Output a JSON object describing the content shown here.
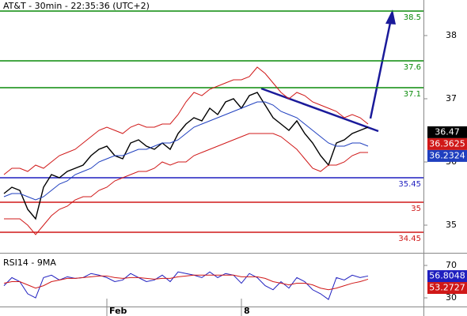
{
  "chart_data": [
    {
      "type": "line",
      "title": "AT&T - 30min - 22:35:36 (UTC+2)",
      "xticks": [
        {
          "value": 13,
          "label": "Feb"
        },
        {
          "value": 30,
          "label": "8"
        }
      ],
      "ylim": [
        34.5625,
        38.5625
      ],
      "yticks": [
        35,
        36,
        37,
        38
      ],
      "series": [
        {
          "name": "Close",
          "color": "#000000",
          "values": [
            35.5,
            35.6,
            35.55,
            35.25,
            35.1,
            35.6,
            35.8,
            35.75,
            35.85,
            35.9,
            35.95,
            36.1,
            36.2,
            36.25,
            36.1,
            36.05,
            36.3,
            36.35,
            36.25,
            36.2,
            36.3,
            36.2,
            36.45,
            36.6,
            36.7,
            36.65,
            36.85,
            36.75,
            36.95,
            37.0,
            36.85,
            37.05,
            37.1,
            36.9,
            36.7,
            36.6,
            36.5,
            36.65,
            36.45,
            36.3,
            36.1,
            35.95,
            36.3,
            36.35,
            36.45,
            36.5,
            36.55
          ]
        },
        {
          "name": "MA",
          "color": "#1f3fbf",
          "values": [
            35.45,
            35.5,
            35.5,
            35.45,
            35.4,
            35.45,
            35.55,
            35.65,
            35.7,
            35.8,
            35.85,
            35.9,
            36.0,
            36.05,
            36.1,
            36.1,
            36.15,
            36.2,
            36.2,
            36.25,
            36.3,
            36.3,
            36.35,
            36.45,
            36.55,
            36.6,
            36.65,
            36.7,
            36.75,
            36.8,
            36.85,
            36.9,
            36.95,
            36.95,
            36.9,
            36.8,
            36.75,
            36.7,
            36.6,
            36.5,
            36.4,
            36.3,
            36.25,
            36.25,
            36.3,
            36.3,
            36.25
          ]
        },
        {
          "name": "Upper",
          "color": "#d01818",
          "values": [
            35.8,
            35.9,
            35.9,
            35.85,
            35.95,
            35.9,
            36.0,
            36.1,
            36.15,
            36.2,
            36.3,
            36.4,
            36.5,
            36.55,
            36.5,
            36.45,
            36.55,
            36.6,
            36.55,
            36.55,
            36.6,
            36.6,
            36.75,
            36.95,
            37.1,
            37.05,
            37.15,
            37.2,
            37.25,
            37.3,
            37.3,
            37.35,
            37.5,
            37.4,
            37.25,
            37.1,
            37.0,
            37.1,
            37.05,
            36.95,
            36.9,
            36.85,
            36.8,
            36.7,
            36.75,
            36.7,
            36.6
          ]
        },
        {
          "name": "Lower",
          "color": "#d01818",
          "values": [
            35.1,
            35.1,
            35.1,
            35.0,
            34.85,
            35.0,
            35.15,
            35.25,
            35.3,
            35.4,
            35.45,
            35.45,
            35.55,
            35.6,
            35.7,
            35.75,
            35.8,
            35.85,
            35.85,
            35.9,
            36.0,
            35.95,
            36.0,
            36.0,
            36.1,
            36.15,
            36.2,
            36.25,
            36.3,
            36.35,
            36.4,
            36.45,
            36.45,
            36.45,
            36.45,
            36.4,
            36.3,
            36.2,
            36.05,
            35.9,
            35.85,
            35.95,
            35.95,
            36.0,
            36.1,
            36.15,
            36.15
          ]
        }
      ],
      "last_values": [
        {
          "value": 36.47,
          "color": "#000000"
        },
        {
          "value": 36.3625,
          "color": "#d01818"
        },
        {
          "value": 36.2324,
          "color": "#1f3fbf"
        }
      ],
      "levels": [
        {
          "label": "38.5",
          "color": "#0a8a0a"
        },
        {
          "label": "37.6",
          "color": "#0a8a0a"
        },
        {
          "label": "37.1",
          "color": "#0a8a0a"
        },
        {
          "label": "35.45",
          "color": "#1f1fbf"
        },
        {
          "label": "35",
          "color": "#d01818"
        },
        {
          "label": "34.45",
          "color": "#d01818"
        }
      ]
    },
    {
      "type": "line",
      "title": "RSI14 - 9MA",
      "ylim": [
        19.3,
        80.7
      ],
      "yticks": [
        30,
        70
      ],
      "series": [
        {
          "name": "RSI14",
          "color": "#1f1fbf",
          "values": [
            45,
            55,
            50,
            35,
            30,
            55,
            58,
            52,
            56,
            54,
            55,
            60,
            58,
            55,
            50,
            52,
            60,
            55,
            50,
            52,
            58,
            50,
            62,
            60,
            58,
            55,
            62,
            55,
            60,
            58,
            48,
            60,
            55,
            45,
            40,
            50,
            42,
            55,
            50,
            40,
            35,
            28,
            55,
            52,
            58,
            55,
            57
          ]
        },
        {
          "name": "9MA",
          "color": "#d01818",
          "values": [
            48,
            50,
            50,
            46,
            42,
            45,
            50,
            52,
            54,
            54,
            55,
            56,
            57,
            57,
            55,
            54,
            55,
            55,
            54,
            53,
            54,
            54,
            56,
            57,
            58,
            58,
            58,
            58,
            58,
            58,
            56,
            56,
            56,
            54,
            50,
            48,
            46,
            48,
            48,
            46,
            42,
            40,
            42,
            45,
            48,
            50,
            53
          ]
        }
      ],
      "last_values": [
        {
          "value": 56.8048,
          "color": "#1f1fbf"
        },
        {
          "value": 53.2727,
          "color": "#d01818"
        }
      ]
    }
  ]
}
